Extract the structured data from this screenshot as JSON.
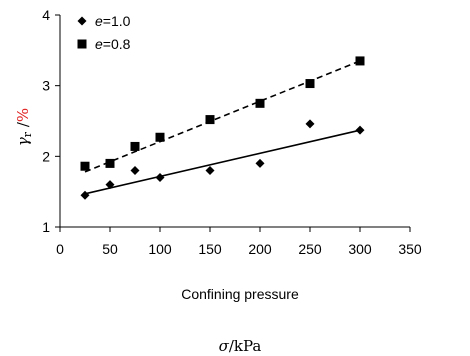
{
  "chart_data": {
    "type": "scatter",
    "title": "",
    "xlabel": "Confining pressure",
    "sub_xlabel": {
      "symbol": "σ",
      "unit": "/kPa"
    },
    "ylabel": {
      "symbol": "γ",
      "subscript": "r",
      "separator": " /",
      "unit": "%"
    },
    "xlim": [
      0,
      350
    ],
    "ylim": [
      1,
      4
    ],
    "xticks": [
      0,
      50,
      100,
      150,
      200,
      250,
      300,
      350
    ],
    "yticks": [
      1,
      2,
      3,
      4
    ],
    "grid": false,
    "legend_position": "top-left",
    "series": [
      {
        "name": "e=1.0",
        "legend_italic": "e",
        "legend_rest": "=1.0",
        "marker": "diamond",
        "color": "#000000",
        "x": [
          25,
          50,
          75,
          100,
          150,
          200,
          250,
          300
        ],
        "y": [
          1.45,
          1.6,
          1.8,
          1.7,
          1.8,
          1.9,
          2.46,
          2.37
        ],
        "fit": {
          "style": "solid",
          "x": [
            25,
            300
          ],
          "y": [
            1.47,
            2.37
          ]
        }
      },
      {
        "name": "e=0.8",
        "legend_italic": "e",
        "legend_rest": "=0.8",
        "marker": "square",
        "color": "#000000",
        "x": [
          25,
          50,
          75,
          100,
          150,
          200,
          250,
          300
        ],
        "y": [
          1.86,
          1.9,
          2.14,
          2.27,
          2.52,
          2.75,
          3.03,
          3.35
        ],
        "fit": {
          "style": "dashed",
          "x": [
            25,
            300
          ],
          "y": [
            1.78,
            3.35
          ]
        }
      }
    ],
    "colors": {
      "axis": "#000000",
      "ylabel_symbol": "#000000",
      "ylabel_unit": "#e02020"
    }
  }
}
